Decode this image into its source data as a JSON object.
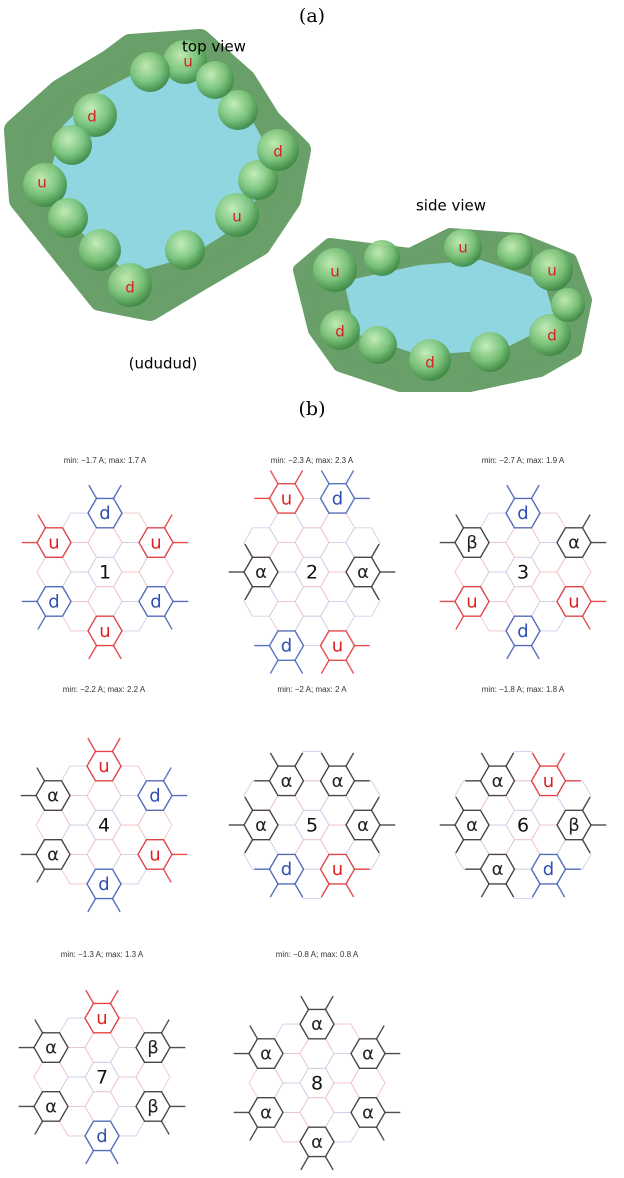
{
  "panel_a": {
    "label": "(a)",
    "top_view": {
      "title": "top view",
      "labels": [
        "u",
        "d",
        "d",
        "u",
        "u",
        "d"
      ]
    },
    "side_view": {
      "title": "side view",
      "labels": [
        "u",
        "u",
        "u",
        "d",
        "d",
        "d"
      ]
    },
    "sequence": "(ududud)"
  },
  "panel_b": {
    "label": "(b)",
    "diagrams": [
      {
        "caption": "min: −1.7 A; max: 1.7 A",
        "number": "1",
        "rings": [
          {
            "label": "d",
            "color": "#3050b0"
          },
          {
            "label": "u",
            "color": "#e02020"
          },
          {
            "label": "u",
            "color": "#e02020"
          },
          {
            "label": "d",
            "color": "#3050b0"
          },
          {
            "label": "d",
            "color": "#3050b0"
          },
          {
            "label": "u",
            "color": "#e02020"
          }
        ]
      },
      {
        "caption": "min: −2.3 A; max: 2.3 A",
        "number": "2",
        "rings": [
          {
            "label": "u",
            "color": "#e02020"
          },
          {
            "label": "d",
            "color": "#3050b0"
          },
          {
            "label": "α",
            "color": "#222222"
          },
          {
            "label": "α",
            "color": "#222222"
          },
          {
            "label": "d",
            "color": "#3050b0"
          },
          {
            "label": "u",
            "color": "#e02020"
          }
        ]
      },
      {
        "caption": "min: −2.7 A; max: 1.9 A",
        "number": "3",
        "rings": [
          {
            "label": "d",
            "color": "#3050b0"
          },
          {
            "label": "β",
            "color": "#222222"
          },
          {
            "label": "α",
            "color": "#222222"
          },
          {
            "label": "u",
            "color": "#e02020"
          },
          {
            "label": "u",
            "color": "#e02020"
          },
          {
            "label": "d",
            "color": "#3050b0"
          }
        ]
      },
      {
        "caption": "min: −2.2 A; max: 2.2 A",
        "number": "4",
        "rings": [
          {
            "label": "u",
            "color": "#e02020"
          },
          {
            "label": "α",
            "color": "#222222"
          },
          {
            "label": "d",
            "color": "#3050b0"
          },
          {
            "label": "α",
            "color": "#222222"
          },
          {
            "label": "u",
            "color": "#e02020"
          },
          {
            "label": "d",
            "color": "#3050b0"
          }
        ]
      },
      {
        "caption": "min: −2 A; max: 2 A",
        "number": "5",
        "rings": [
          {
            "label": "α",
            "color": "#222222"
          },
          {
            "label": "α",
            "color": "#222222"
          },
          {
            "label": "α",
            "color": "#222222"
          },
          {
            "label": "α",
            "color": "#222222"
          },
          {
            "label": "d",
            "color": "#3050b0"
          },
          {
            "label": "u",
            "color": "#e02020"
          }
        ]
      },
      {
        "caption": "min: −1.8 A; max: 1.8 A",
        "number": "6",
        "rings": [
          {
            "label": "α",
            "color": "#222222"
          },
          {
            "label": "u",
            "color": "#e02020"
          },
          {
            "label": "α",
            "color": "#222222"
          },
          {
            "label": "β",
            "color": "#222222"
          },
          {
            "label": "α",
            "color": "#222222"
          },
          {
            "label": "d",
            "color": "#3050b0"
          }
        ]
      },
      {
        "caption": "min: −1.3 A; max: 1.3 A",
        "number": "7",
        "rings": [
          {
            "label": "u",
            "color": "#e02020"
          },
          {
            "label": "α",
            "color": "#222222"
          },
          {
            "label": "β",
            "color": "#222222"
          },
          {
            "label": "α",
            "color": "#222222"
          },
          {
            "label": "β",
            "color": "#222222"
          },
          {
            "label": "d",
            "color": "#3050b0"
          }
        ]
      },
      {
        "caption": "min: −0.8 A; max: 0.8 A",
        "number": "8",
        "rings": [
          {
            "label": "α",
            "color": "#222222"
          },
          {
            "label": "α",
            "color": "#222222"
          },
          {
            "label": "α",
            "color": "#222222"
          },
          {
            "label": "α",
            "color": "#222222"
          },
          {
            "label": "α",
            "color": "#222222"
          },
          {
            "label": "α",
            "color": "#222222"
          }
        ]
      }
    ]
  }
}
